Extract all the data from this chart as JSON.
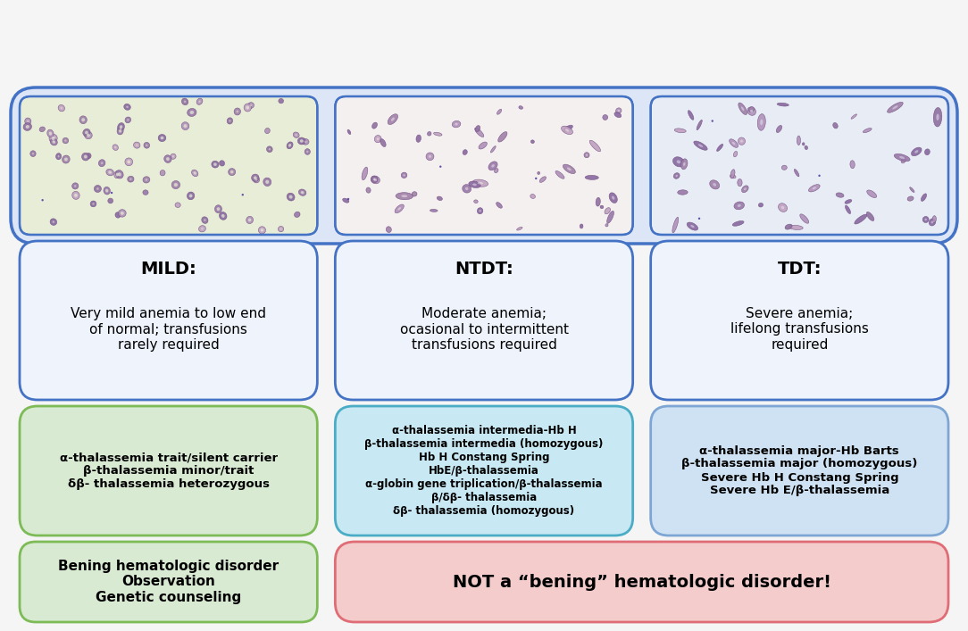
{
  "bg_color": "#f5f5f5",
  "outer_box_color": "#4472c4",
  "outer_box_fill": "#dce6f7",
  "image_box_color": "#4472c4",
  "image1_bg": "#e8edd8",
  "image2_bg": "#f5f0f0",
  "image3_bg": "#e8ecf5",
  "desc_box_color": "#4472c4",
  "desc_box_fill": "#eef3fc",
  "green_box_color": "#7dbb57",
  "green_box_fill": "#d9ead3",
  "cyan_box_color": "#4bacc6",
  "cyan_box_fill": "#c8e8f3",
  "blue_box_color": "#7ea6d4",
  "blue_box_fill": "#cfe2f3",
  "green_bottom_color": "#7dbb57",
  "green_bottom_fill": "#d9ead3",
  "red_box_color": "#e06c75",
  "red_box_fill": "#f4cccc",
  "mild_title": "MILD:",
  "ntdt_title": "NTDT:",
  "tdt_title": "TDT:",
  "mild_text": "Very mild anemia to low end\nof normal; transfusions\nrarely required",
  "ntdt_text": "Moderate anemia;\nocasional to intermittent\ntransfusions required",
  "tdt_text": "Severe anemia;\nlifelong transfusions\nrequired",
  "green_text": "α-thalassemia trait/silent carrier\nβ-thalassemia minor/trait\nδβ- thalassemia heterozygous",
  "cyan_text": "α-thalassemia intermedia-Hb H\nβ-thalassemia intermedia (homozygous)\nHb H Constang Spring\nHbE/β-thalassemia\nα-globin gene triplication/β-thalassemia\nβ/δβ- thalassemia\nδβ- thalassemia (homozygous)",
  "blue_text": "α-thalassemia major-Hb Barts\nβ-thalassemia major (homozygous)\nSevere Hb H Constang Spring\nSevere Hb E/β-thalassemia",
  "green_bottom_text": "Bening hematologic disorder\nObservation\nGenetic counseling",
  "red_text": "NOT a “bening” hematologic disorder!",
  "text_color": "#000000",
  "title_fontsize": 14,
  "body_fontsize": 11,
  "small_fontsize": 9.5,
  "cyan_fontsize": 8.5
}
